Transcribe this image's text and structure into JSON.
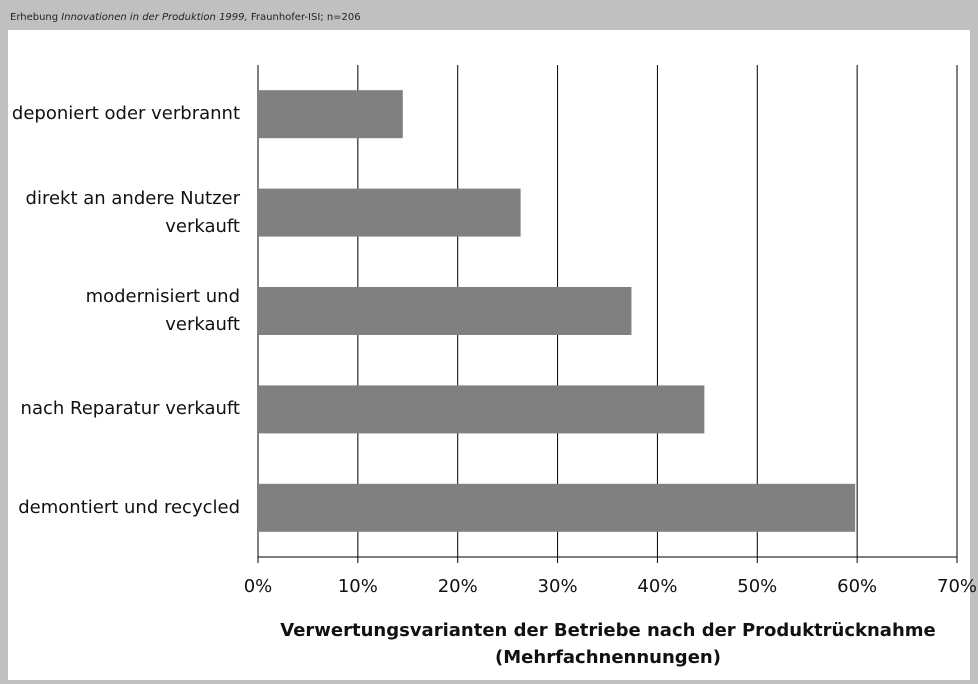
{
  "chart_data": {
    "type": "bar",
    "orientation": "horizontal",
    "source": {
      "prefix": "Erhebung ",
      "italic": "Innovationen in der Produktion 1999,",
      "suffix": " Fraunhofer-ISI; n=206"
    },
    "categories": [
      "deponiert oder verbrannt",
      "direkt an andere Nutzer\nverkauft",
      "modernisiert und\nverkauft",
      "nach Reparatur verkauft",
      "demontiert und recycled"
    ],
    "values": [
      14.5,
      26.3,
      37.4,
      44.7,
      59.8
    ],
    "color": "#808080",
    "xlim": [
      0,
      70
    ],
    "xticks": [
      {
        "value": 0,
        "label": "0%"
      },
      {
        "value": 10,
        "label": "10%"
      },
      {
        "value": 20,
        "label": "20%"
      },
      {
        "value": 30,
        "label": "30%"
      },
      {
        "value": 40,
        "label": "40%"
      },
      {
        "value": 50,
        "label": "50%"
      },
      {
        "value": 60,
        "label": "60%"
      },
      {
        "value": 70,
        "label": "70%"
      }
    ],
    "xlabel": "Verwertungsvarianten der Betriebe nach der Produktrücknahme\n(Mehrfachnennungen)",
    "grid": true
  }
}
